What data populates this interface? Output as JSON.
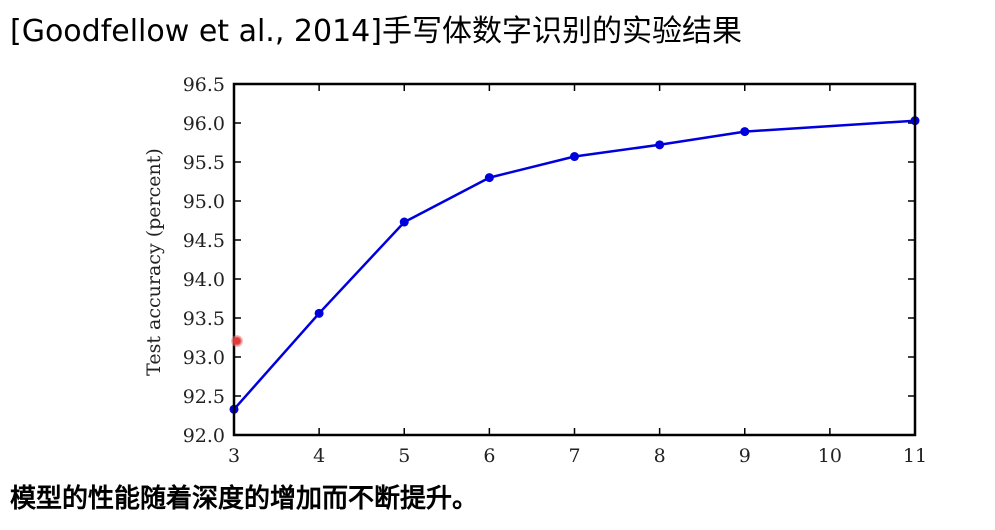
{
  "slide": {
    "title": "[Goodfellow et al., 2014]手写体数字识别的实验结果",
    "caption": "模型的性能随着深度的增加而不断提升。"
  },
  "colors": {
    "series": "#0000dd",
    "axis": "#000000"
  },
  "chart_data": {
    "type": "line",
    "title": "",
    "xlabel": "",
    "ylabel": "Test accuracy (percent)",
    "xlim": [
      3,
      11
    ],
    "ylim": [
      92.0,
      96.5
    ],
    "xticks": [
      "3",
      "4",
      "5",
      "6",
      "7",
      "8",
      "9",
      "10",
      "11"
    ],
    "yticks": [
      "92.0",
      "92.5",
      "93.0",
      "93.5",
      "94.0",
      "94.5",
      "95.0",
      "95.5",
      "96.0",
      "96.5"
    ],
    "grid": false,
    "legend": "none",
    "series": [
      {
        "x": [
          3,
          4,
          5,
          6,
          7,
          8,
          9,
          11
        ],
        "y": [
          92.33,
          93.56,
          94.73,
          95.3,
          95.57,
          95.72,
          95.89,
          96.03
        ]
      }
    ]
  }
}
